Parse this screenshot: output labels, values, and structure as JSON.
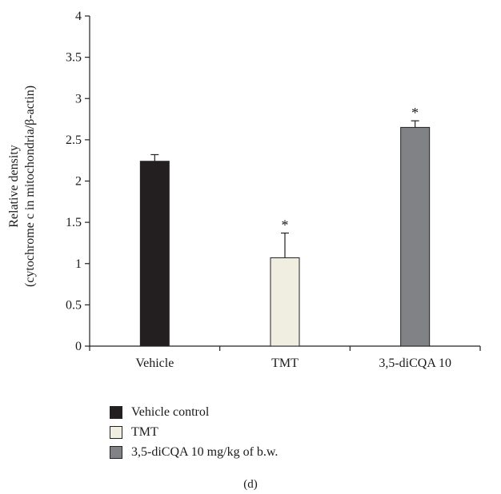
{
  "chart_data": {
    "type": "bar",
    "categories": [
      "Vehicle",
      "TMT",
      "3,5-diCQA 10"
    ],
    "series": [
      {
        "values": [
          2.24,
          1.07,
          2.65
        ]
      }
    ],
    "errors": [
      0.08,
      0.3,
      0.08
    ],
    "significance": [
      "",
      "*",
      "*"
    ],
    "ylabel_line1": "Relative density",
    "ylabel_line2": "(cytochrome c in mitochondria/β-actin)",
    "ylim": [
      0,
      4
    ],
    "yticks": [
      "0",
      "0.5",
      "1",
      "1.5",
      "2",
      "2.5",
      "3",
      "3.5",
      "4"
    ],
    "bar_colors": [
      "#231f20",
      "#efeee0",
      "#808285"
    ],
    "grid": false,
    "legend_position": "bottom-left",
    "legend": [
      "Vehicle control",
      "TMT",
      "3,5-diCQA 10 mg/kg of b.w."
    ]
  },
  "panel_label": "(d)"
}
